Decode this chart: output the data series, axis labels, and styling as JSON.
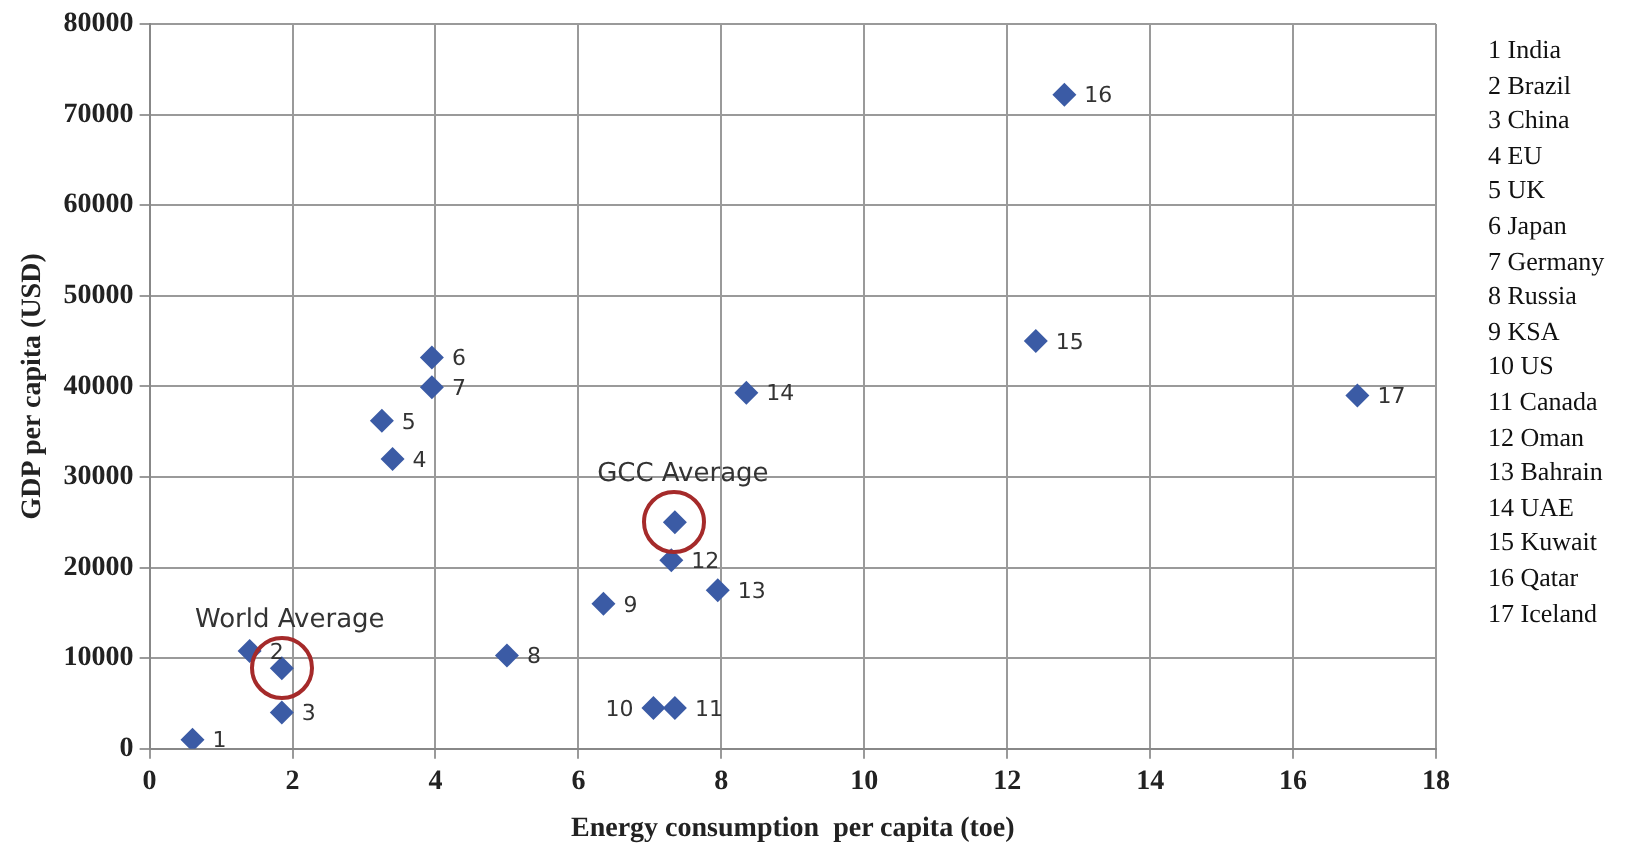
{
  "chart_data": {
    "type": "scatter",
    "xlabel": "Energy consumption  per capita (toe)",
    "ylabel": "GDP per capita (USD)",
    "xlim": [
      0,
      18
    ],
    "xticks": [
      0,
      2,
      4,
      6,
      8,
      10,
      12,
      14,
      16,
      18
    ],
    "ylim": [
      0,
      80000
    ],
    "yticks": [
      0,
      10000,
      20000,
      30000,
      40000,
      50000,
      60000,
      70000,
      80000
    ],
    "grid": true,
    "legend": false,
    "marker": "diamond",
    "series": [
      {
        "color": "#3b5ba5",
        "x": [
          0.6,
          1.4,
          1.85,
          3.4,
          3.25,
          3.95,
          3.95,
          5.0,
          6.35,
          7.05,
          7.35,
          7.3,
          7.95,
          8.35,
          12.4,
          12.8,
          16.9
        ],
        "values": [
          1000,
          10800,
          4000,
          32000,
          36200,
          43200,
          39900,
          10300,
          16000,
          4500,
          4500,
          20800,
          17500,
          39300,
          45000,
          72200,
          39000
        ]
      },
      {
        "color": "#3b5ba5",
        "x": [
          1.85,
          7.35
        ],
        "values": [
          8900,
          25000
        ]
      }
    ],
    "annotations": [
      {
        "text": "1",
        "x": 0.6,
        "y": 1000
      },
      {
        "text": "2",
        "x": 1.4,
        "y": 10800
      },
      {
        "text": "3",
        "x": 1.85,
        "y": 4000
      },
      {
        "text": "4",
        "x": 3.4,
        "y": 32000
      },
      {
        "text": "5",
        "x": 3.25,
        "y": 36200
      },
      {
        "text": "6",
        "x": 3.95,
        "y": 43200
      },
      {
        "text": "7",
        "x": 3.95,
        "y": 39900
      },
      {
        "text": "8",
        "x": 5.0,
        "y": 10300
      },
      {
        "text": "9",
        "x": 6.35,
        "y": 16000
      },
      {
        "text": "10",
        "x": 7.05,
        "y": 4500
      },
      {
        "text": "11",
        "x": 7.35,
        "y": 4500
      },
      {
        "text": "12",
        "x": 7.3,
        "y": 20800
      },
      {
        "text": "13",
        "x": 7.95,
        "y": 17500
      },
      {
        "text": "14",
        "x": 8.35,
        "y": 39300
      },
      {
        "text": "15",
        "x": 12.4,
        "y": 45000
      },
      {
        "text": "16",
        "x": 12.8,
        "y": 72200
      },
      {
        "text": "17",
        "x": 16.9,
        "y": 39000
      },
      {
        "text": "World Average",
        "x": 1.85,
        "y": 8900
      },
      {
        "text": "GCC Average",
        "x": 7.35,
        "y": 25000
      },
      "1 India",
      "2 Brazil",
      "3 China",
      "4 EU",
      "5 UK",
      "6 Japan",
      "7 Germany",
      "8 Russia",
      "9 KSA",
      "10 US",
      "11 Canada",
      "12 Oman",
      "13 Bahrain",
      "14 UAE",
      "15 Kuwait",
      "16 Qatar",
      "17 Iceland"
    ]
  }
}
